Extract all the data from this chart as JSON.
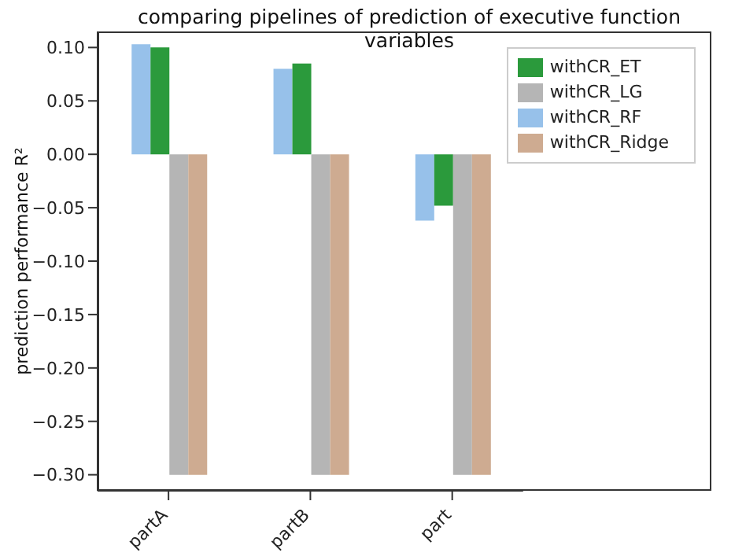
{
  "chart_data": {
    "type": "bar",
    "title": "comparing pipelines of prediction of executive function variables",
    "ylabel": "prediction performance R²",
    "categories": [
      "partA",
      "partB",
      "part"
    ],
    "series": [
      {
        "name": "withCR_RF",
        "color": "#97c1ea",
        "values": [
          0.103,
          0.08,
          -0.062
        ]
      },
      {
        "name": "withCR_ET",
        "color": "#2b9a3c",
        "values": [
          0.1,
          0.085,
          -0.048
        ]
      },
      {
        "name": "withCR_LG",
        "color": "#b5b5b5",
        "values": [
          -0.3,
          -0.3,
          -0.3
        ]
      },
      {
        "name": "withCR_Ridge",
        "color": "#ceab91",
        "values": [
          -0.3,
          -0.3,
          -0.3
        ]
      }
    ],
    "ylim": [
      -0.315,
      0.115
    ],
    "yticks": [
      {
        "value": -0.3,
        "label": "−0.30"
      },
      {
        "value": -0.25,
        "label": "−0.25"
      },
      {
        "value": -0.2,
        "label": "−0.20"
      },
      {
        "value": -0.15,
        "label": "−0.15"
      },
      {
        "value": -0.1,
        "label": "−0.10"
      },
      {
        "value": -0.05,
        "label": "−0.05"
      },
      {
        "value": 0,
        "label": "0.00"
      },
      {
        "value": 0.05,
        "label": "0.05"
      },
      {
        "value": 0.1,
        "label": "0.10"
      }
    ],
    "grid": false,
    "legend": "top right"
  }
}
